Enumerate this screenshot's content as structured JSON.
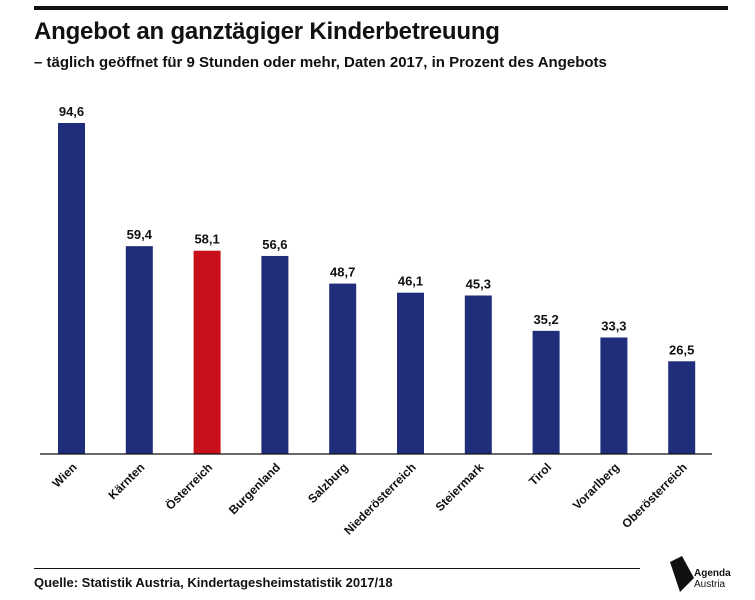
{
  "chart_data": {
    "type": "bar",
    "title": "Angebot an ganztägiger Kinderbetreuung",
    "subtitle": "– täglich geöffnet für 9 Stunden oder mehr, Daten 2017, in Prozent des Angebots",
    "categories": [
      "Wien",
      "Kärnten",
      "Österreich",
      "Burgenland",
      "Salzburg",
      "Niederösterreich",
      "Steiermark",
      "Tirol",
      "Vorarlberg",
      "Oberösterreich"
    ],
    "values": [
      94.6,
      59.4,
      58.1,
      56.6,
      48.7,
      46.1,
      45.3,
      35.2,
      33.3,
      26.5
    ],
    "value_labels": [
      "94,6",
      "59,4",
      "58,1",
      "56,6",
      "48,7",
      "46,1",
      "45,3",
      "35,2",
      "33,3",
      "26,5"
    ],
    "highlight": "Österreich",
    "xlabel": "",
    "ylabel": "",
    "ylim": [
      0,
      100
    ],
    "colors": {
      "bar": "#1f2d7a",
      "highlight": "#c8101a",
      "text": "#111111"
    }
  },
  "source": "Quelle: Statistik Austria, Kindertagesheimstatistik 2017/18",
  "logo": {
    "line1": "Agenda",
    "line2": "Austria"
  }
}
